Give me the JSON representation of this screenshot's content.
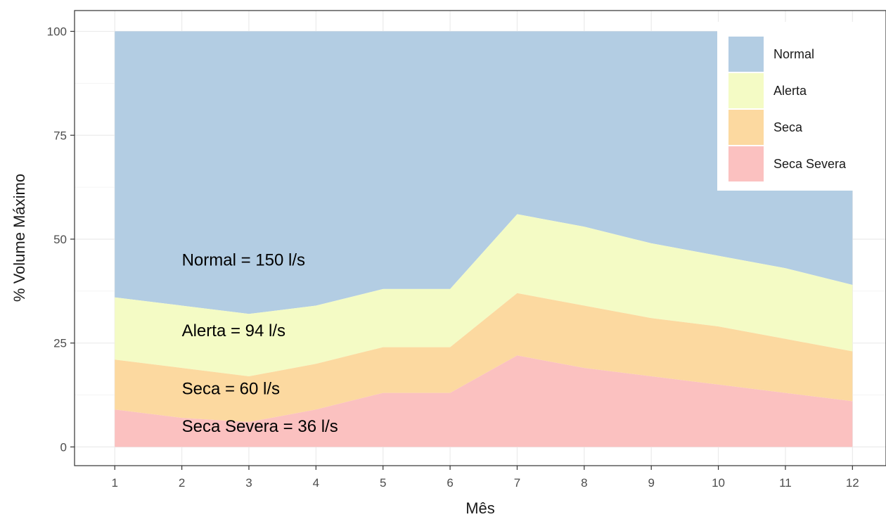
{
  "chart_data": {
    "type": "area",
    "xlabel": "Mês",
    "ylabel": "% Volume Máximo",
    "x": [
      1,
      2,
      3,
      4,
      5,
      6,
      7,
      8,
      9,
      10,
      11,
      12
    ],
    "xlim": [
      0.4,
      12.5
    ],
    "ylim": [
      -4.5,
      105
    ],
    "x_ticks": [
      "1",
      "2",
      "3",
      "4",
      "5",
      "6",
      "7",
      "8",
      "9",
      "10",
      "11",
      "12"
    ],
    "y_ticks": [
      "0",
      "25",
      "50",
      "75",
      "100"
    ],
    "grid": true,
    "legend_position": "top-right",
    "series": [
      {
        "name": "Normal",
        "color": "#b3cde3",
        "values": [
          100,
          100,
          100,
          100,
          100,
          100,
          100,
          100,
          100,
          100,
          100,
          100
        ]
      },
      {
        "name": "Alerta",
        "color": "#f4fbc5",
        "values": [
          36,
          34,
          32,
          34,
          38,
          38,
          56,
          53,
          49,
          46,
          43,
          39
        ]
      },
      {
        "name": "Seca",
        "color": "#fcd9a0",
        "values": [
          21,
          19,
          17,
          20,
          24,
          24,
          37,
          34,
          31,
          29,
          26,
          23
        ]
      },
      {
        "name": "Seca Severa",
        "color": "#fbc1c0",
        "values": [
          9,
          7,
          6,
          9,
          13,
          13,
          22,
          19,
          17,
          15,
          13,
          11
        ]
      }
    ],
    "annotations": [
      {
        "text": "Normal = 150 l/s",
        "x": 2,
        "y": 45
      },
      {
        "text": "Alerta = 94 l/s",
        "x": 2,
        "y": 28
      },
      {
        "text": "Seca = 60 l/s",
        "x": 2,
        "y": 14
      },
      {
        "text": "Seca Severa = 36 l/s",
        "x": 2,
        "y": 5
      }
    ]
  }
}
